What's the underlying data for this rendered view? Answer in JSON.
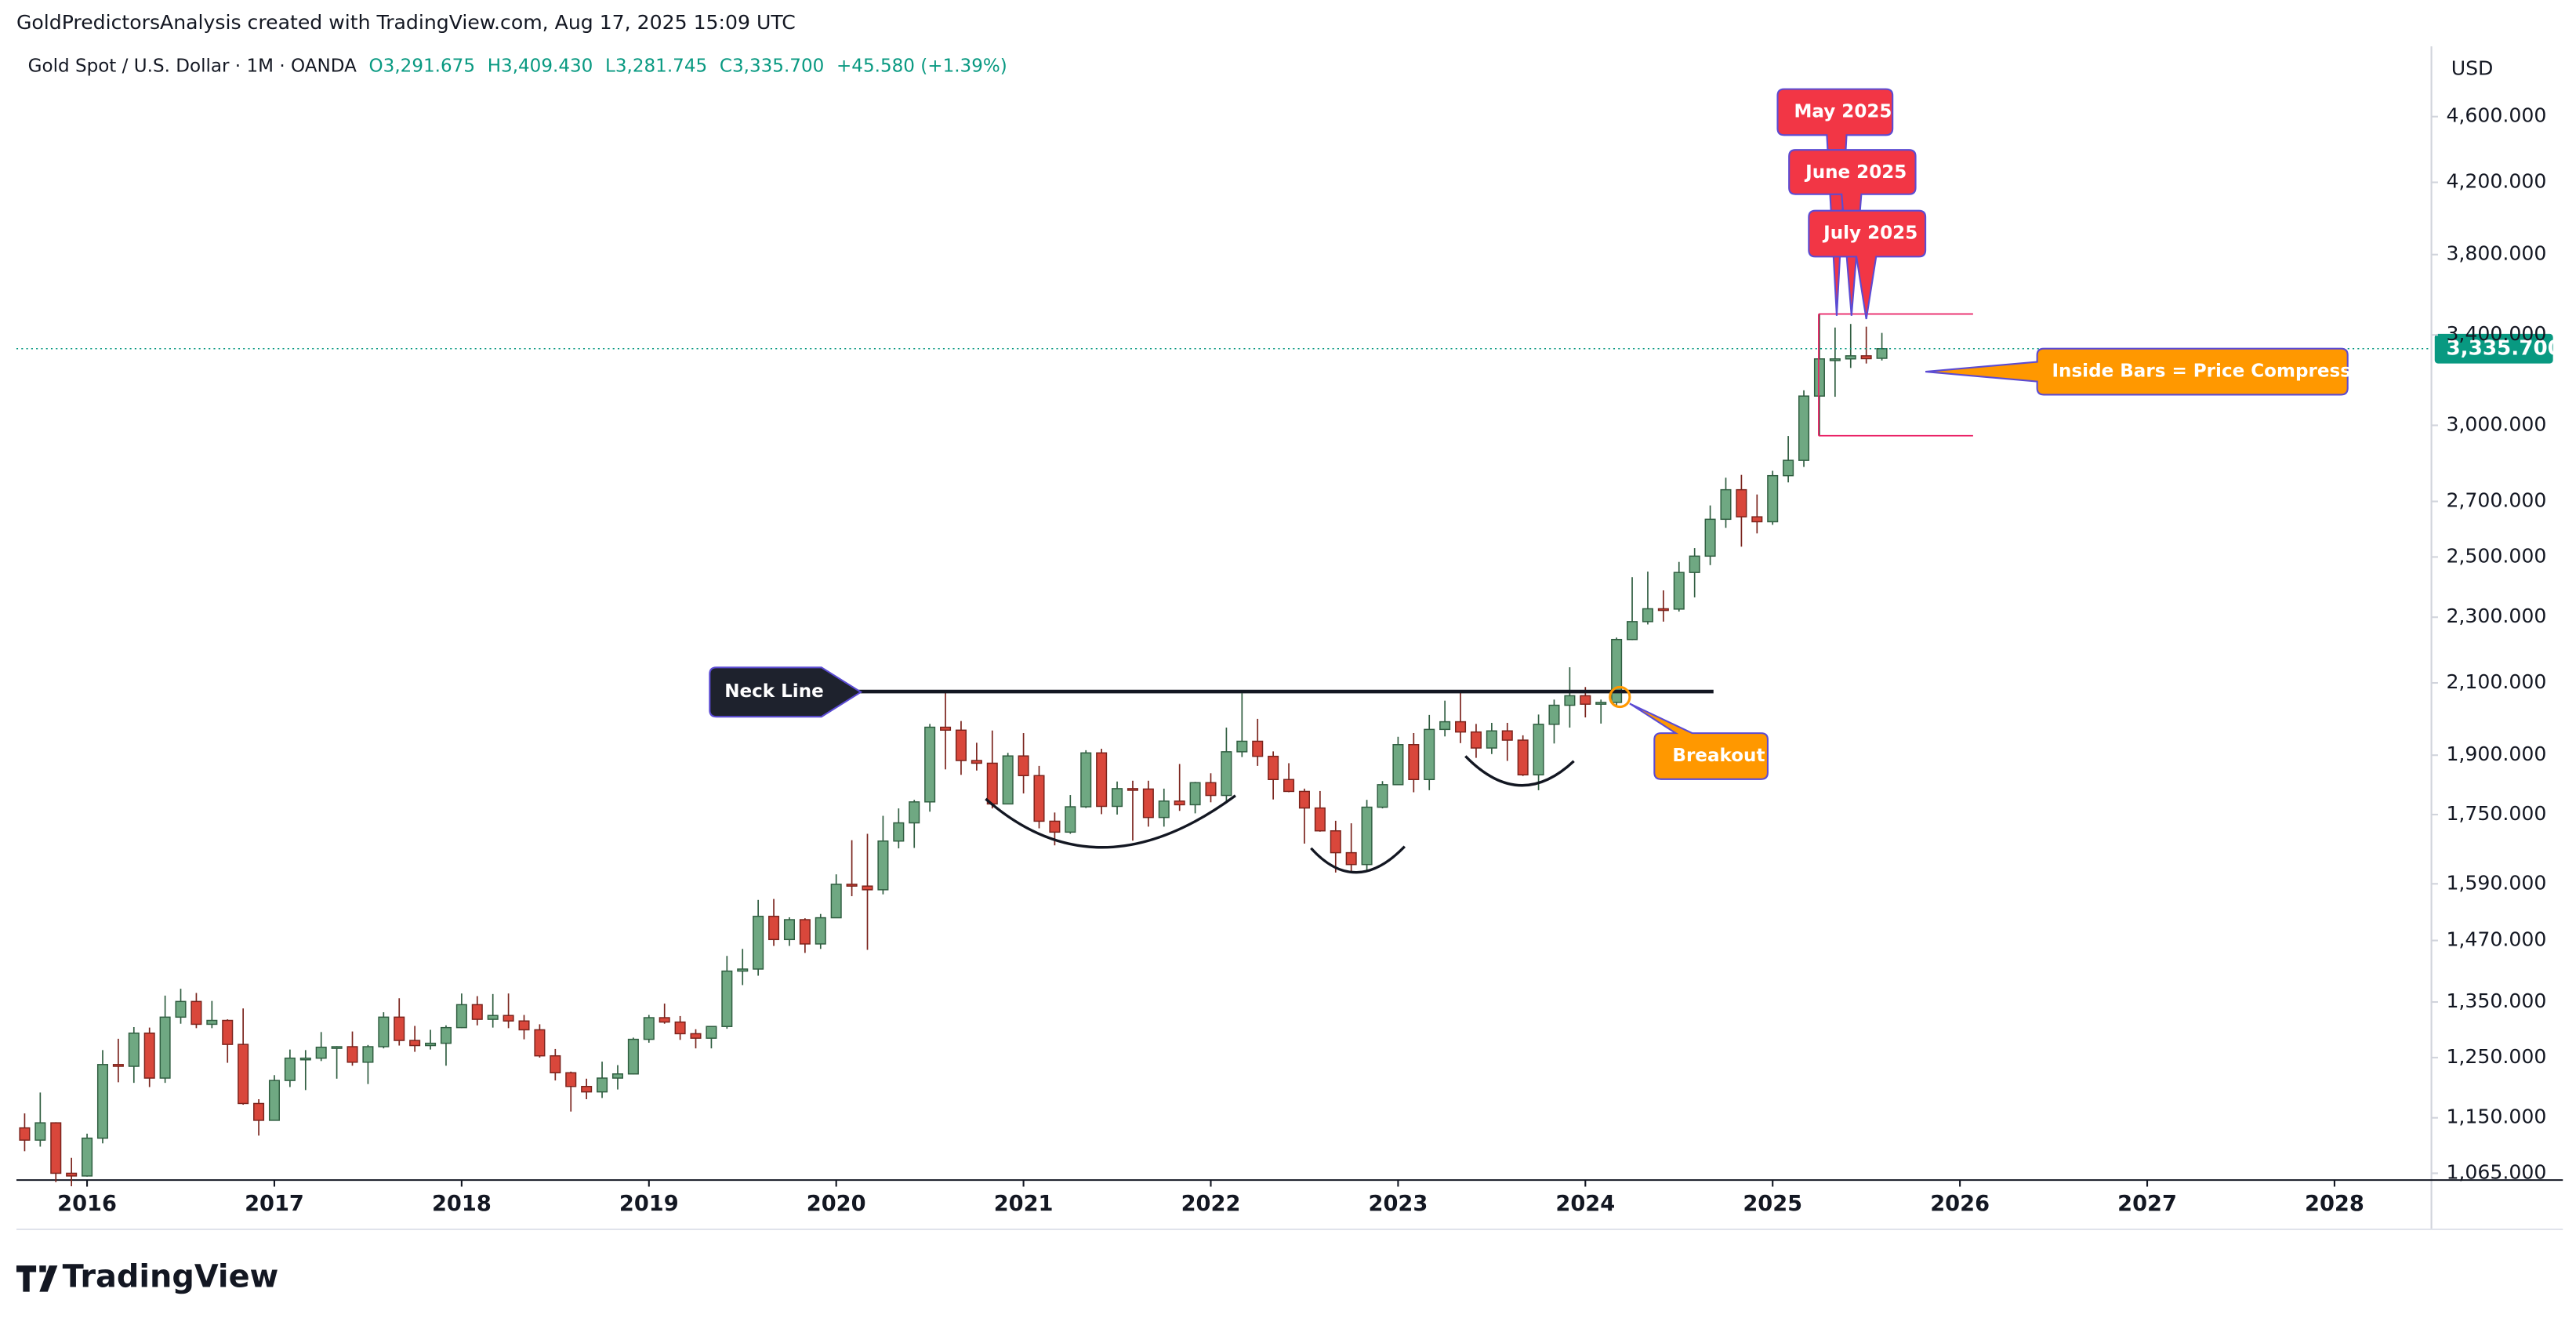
{
  "header": {
    "credit": "GoldPredictorsAnalysis created with TradingView.com, Aug 17, 2025 15:09 UTC",
    "symbol": "Gold Spot / U.S. Dollar · 1M · OANDA",
    "open": "O3,291.675",
    "high": "H3,409.430",
    "low": "L3,281.745",
    "close": "C3,335.700",
    "change": "+45.580 (+1.39%)"
  },
  "currency": "USD",
  "last_price_label": "3,335.700",
  "brand": "TradingView",
  "annotations": {
    "neck_line": "Neck Line",
    "breakout": "Breakout",
    "inside_bars": "Inside Bars = Price Compression",
    "may": "May 2025",
    "june": "June 2025",
    "july": "July 2025"
  },
  "chart_data": {
    "type": "candlestick",
    "log_scale": true,
    "up_color": "#6fa882",
    "down_color": "#d9473b",
    "ylim": [
      1055,
      5070
    ],
    "yticks": [
      {
        "value": 1065,
        "label": "1,065.000"
      },
      {
        "value": 1150,
        "label": "1,150.000"
      },
      {
        "value": 1250,
        "label": "1,250.000"
      },
      {
        "value": 1350,
        "label": "1,350.000"
      },
      {
        "value": 1470,
        "label": "1,470.000"
      },
      {
        "value": 1590,
        "label": "1,590.000"
      },
      {
        "value": 1750,
        "label": "1,750.000"
      },
      {
        "value": 1900,
        "label": "1,900.000"
      },
      {
        "value": 2100,
        "label": "2,100.000"
      },
      {
        "value": 2300,
        "label": "2,300.000"
      },
      {
        "value": 2500,
        "label": "2,500.000"
      },
      {
        "value": 2700,
        "label": "2,700.000"
      },
      {
        "value": 3000,
        "label": "3,000.000"
      },
      {
        "value": 3400,
        "label": "3,400.000"
      },
      {
        "value": 3800,
        "label": "3,800.000"
      },
      {
        "value": 4200,
        "label": "4,200.000"
      },
      {
        "value": 4600,
        "label": "4,600.000"
      }
    ],
    "xticks": [
      2016,
      2017,
      2018,
      2019,
      2020,
      2021,
      2022,
      2023,
      2024,
      2025,
      2026,
      2027,
      2028
    ],
    "neck_line_level": 2075,
    "range_high": 3500,
    "range_low": 2957,
    "ohlc": [
      [
        1134,
        1157,
        1098,
        1115
      ],
      [
        1115,
        1191,
        1105,
        1142
      ],
      [
        1142,
        1143,
        1052,
        1065
      ],
      [
        1065,
        1088,
        1046,
        1061
      ],
      [
        1061,
        1125,
        1060,
        1118
      ],
      [
        1118,
        1263,
        1110,
        1238
      ],
      [
        1238,
        1283,
        1208,
        1235
      ],
      [
        1235,
        1304,
        1207,
        1293
      ],
      [
        1293,
        1303,
        1200,
        1215
      ],
      [
        1215,
        1362,
        1207,
        1322
      ],
      [
        1322,
        1375,
        1310,
        1351
      ],
      [
        1351,
        1367,
        1302,
        1309
      ],
      [
        1309,
        1352,
        1302,
        1316
      ],
      [
        1316,
        1318,
        1241,
        1273
      ],
      [
        1273,
        1338,
        1171,
        1173
      ],
      [
        1173,
        1180,
        1122,
        1146
      ],
      [
        1146,
        1220,
        1146,
        1211
      ],
      [
        1211,
        1264,
        1200,
        1249
      ],
      [
        1249,
        1263,
        1195,
        1249
      ],
      [
        1249,
        1295,
        1244,
        1268
      ],
      [
        1268,
        1270,
        1214,
        1269
      ],
      [
        1269,
        1296,
        1236,
        1242
      ],
      [
        1242,
        1272,
        1205,
        1269
      ],
      [
        1269,
        1331,
        1266,
        1322
      ],
      [
        1322,
        1357,
        1271,
        1280
      ],
      [
        1280,
        1306,
        1260,
        1271
      ],
      [
        1271,
        1299,
        1264,
        1275
      ],
      [
        1275,
        1307,
        1236,
        1303
      ],
      [
        1303,
        1366,
        1302,
        1345
      ],
      [
        1345,
        1361,
        1307,
        1318
      ],
      [
        1318,
        1365,
        1303,
        1325
      ],
      [
        1325,
        1366,
        1302,
        1315
      ],
      [
        1315,
        1326,
        1282,
        1299
      ],
      [
        1299,
        1309,
        1250,
        1253
      ],
      [
        1253,
        1265,
        1211,
        1224
      ],
      [
        1224,
        1226,
        1160,
        1201
      ],
      [
        1201,
        1214,
        1180,
        1192
      ],
      [
        1192,
        1243,
        1182,
        1215
      ],
      [
        1215,
        1237,
        1196,
        1222
      ],
      [
        1222,
        1285,
        1221,
        1282
      ],
      [
        1282,
        1326,
        1276,
        1321
      ],
      [
        1321,
        1347,
        1310,
        1313
      ],
      [
        1313,
        1324,
        1281,
        1292
      ],
      [
        1292,
        1300,
        1266,
        1284
      ],
      [
        1284,
        1306,
        1266,
        1305
      ],
      [
        1305,
        1439,
        1301,
        1409
      ],
      [
        1409,
        1453,
        1382,
        1413
      ],
      [
        1413,
        1555,
        1400,
        1520
      ],
      [
        1520,
        1557,
        1459,
        1472
      ],
      [
        1472,
        1518,
        1459,
        1513
      ],
      [
        1513,
        1516,
        1445,
        1463
      ],
      [
        1463,
        1525,
        1453,
        1517
      ],
      [
        1517,
        1611,
        1517,
        1589
      ],
      [
        1589,
        1689,
        1563,
        1585
      ],
      [
        1585,
        1704,
        1451,
        1577
      ],
      [
        1577,
        1747,
        1567,
        1687
      ],
      [
        1687,
        1765,
        1670,
        1730
      ],
      [
        1730,
        1786,
        1671,
        1781
      ],
      [
        1781,
        1984,
        1757,
        1975
      ],
      [
        1975,
        2075,
        1863,
        1967
      ],
      [
        1967,
        1992,
        1849,
        1886
      ],
      [
        1886,
        1933,
        1860,
        1879
      ],
      [
        1879,
        1966,
        1765,
        1776
      ],
      [
        1776,
        1906,
        1776,
        1898
      ],
      [
        1898,
        1959,
        1802,
        1847
      ],
      [
        1847,
        1872,
        1717,
        1734
      ],
      [
        1734,
        1755,
        1677,
        1708
      ],
      [
        1708,
        1798,
        1704,
        1769
      ],
      [
        1769,
        1913,
        1766,
        1906
      ],
      [
        1906,
        1917,
        1751,
        1770
      ],
      [
        1770,
        1832,
        1750,
        1814
      ],
      [
        1814,
        1834,
        1688,
        1813
      ],
      [
        1813,
        1834,
        1721,
        1743
      ],
      [
        1743,
        1814,
        1721,
        1783
      ],
      [
        1783,
        1877,
        1759,
        1774
      ],
      [
        1774,
        1831,
        1753,
        1829
      ],
      [
        1829,
        1853,
        1780,
        1797
      ],
      [
        1797,
        1974,
        1782,
        1909
      ],
      [
        1909,
        2070,
        1895,
        1937
      ],
      [
        1937,
        1998,
        1872,
        1897
      ],
      [
        1897,
        1910,
        1787,
        1837
      ],
      [
        1837,
        1879,
        1805,
        1807
      ],
      [
        1807,
        1814,
        1681,
        1766
      ],
      [
        1766,
        1808,
        1709,
        1711
      ],
      [
        1711,
        1735,
        1615,
        1660
      ],
      [
        1660,
        1729,
        1617,
        1633
      ],
      [
        1633,
        1786,
        1617,
        1768
      ],
      [
        1768,
        1833,
        1765,
        1824
      ],
      [
        1824,
        1949,
        1823,
        1928
      ],
      [
        1928,
        1959,
        1805,
        1837
      ],
      [
        1837,
        2009,
        1810,
        1969
      ],
      [
        1969,
        2049,
        1950,
        1990
      ],
      [
        1990,
        2079,
        1932,
        1962
      ],
      [
        1962,
        1984,
        1893,
        1919
      ],
      [
        1919,
        1987,
        1903,
        1965
      ],
      [
        1965,
        1987,
        1885,
        1940
      ],
      [
        1940,
        1953,
        1846,
        1849
      ],
      [
        1849,
        2010,
        1810,
        1983
      ],
      [
        1983,
        2052,
        1931,
        2036
      ],
      [
        2036,
        2146,
        1974,
        2063
      ],
      [
        2063,
        2088,
        2002,
        2039
      ],
      [
        2039,
        2052,
        1985,
        2044
      ],
      [
        2044,
        2236,
        2030,
        2230
      ],
      [
        2230,
        2431,
        2228,
        2286
      ],
      [
        2286,
        2450,
        2277,
        2327
      ],
      [
        2327,
        2387,
        2286,
        2326
      ],
      [
        2326,
        2483,
        2318,
        2447
      ],
      [
        2447,
        2531,
        2364,
        2503
      ],
      [
        2503,
        2685,
        2472,
        2634
      ],
      [
        2634,
        2790,
        2603,
        2744
      ],
      [
        2744,
        2801,
        2536,
        2643
      ],
      [
        2643,
        2726,
        2583,
        2625
      ],
      [
        2625,
        2817,
        2614,
        2798
      ],
      [
        2798,
        2956,
        2772,
        2858
      ],
      [
        2858,
        3149,
        2832,
        3124
      ],
      [
        3124,
        3500,
        2957,
        3289
      ],
      [
        3289,
        3435,
        3121,
        3289
      ],
      [
        3289,
        3452,
        3248,
        3303
      ],
      [
        3303,
        3439,
        3268,
        3290
      ],
      [
        3291.675,
        3409.43,
        3281.745,
        3335.7
      ]
    ]
  }
}
